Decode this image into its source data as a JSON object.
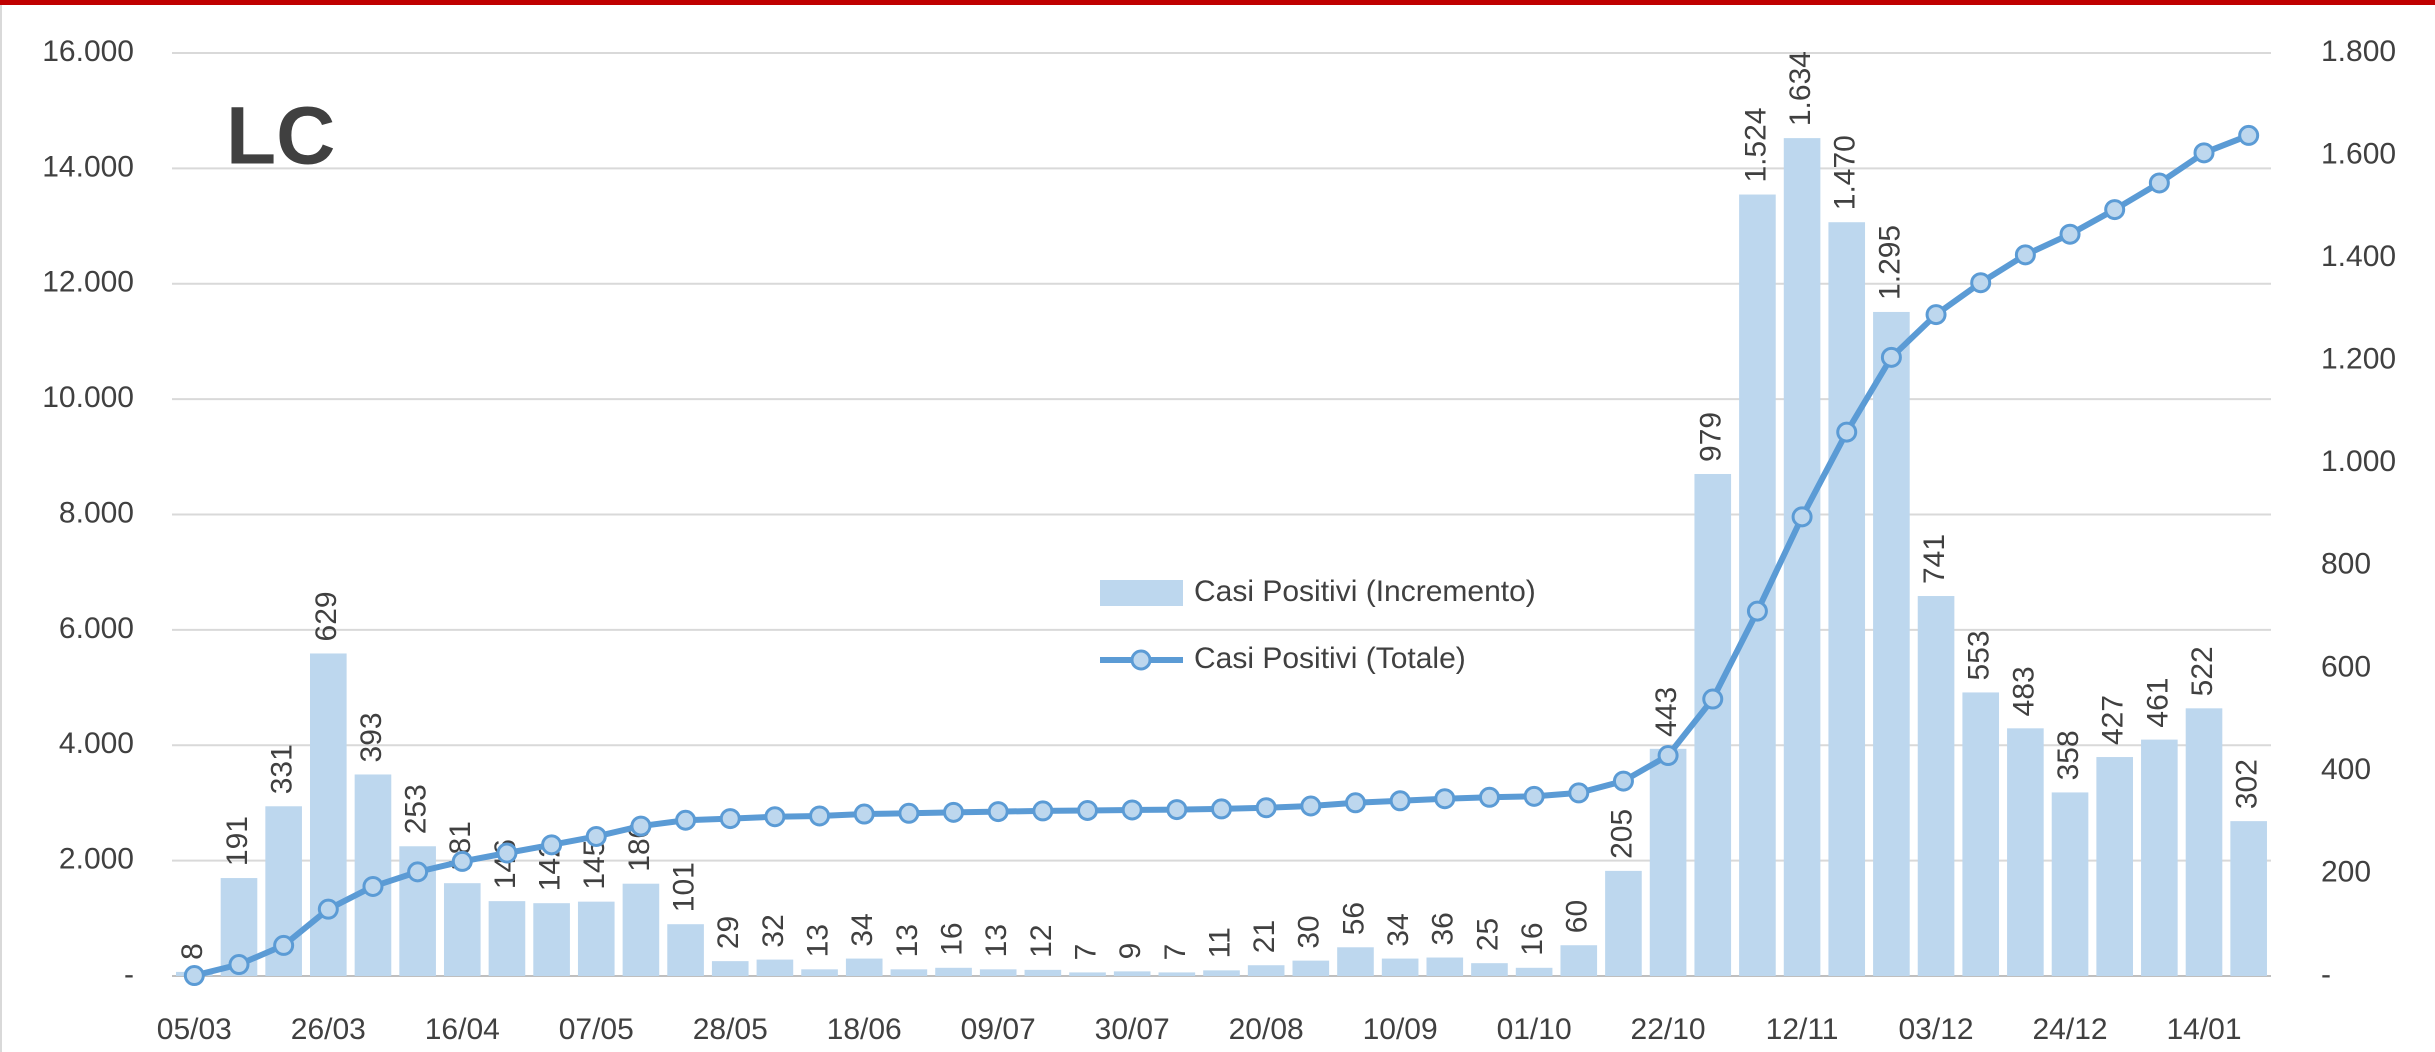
{
  "chart_data": {
    "type": "combo",
    "title": "LC",
    "categories": [
      "05/03",
      null,
      null,
      "26/03",
      null,
      null,
      "16/04",
      null,
      null,
      "07/05",
      null,
      null,
      "28/05",
      null,
      null,
      "18/06",
      null,
      null,
      "09/07",
      null,
      null,
      "30/07",
      null,
      null,
      "20/08",
      null,
      null,
      "10/09",
      null,
      null,
      "01/10",
      null,
      null,
      "22/10",
      null,
      null,
      "12/11",
      null,
      null,
      "03/12",
      null,
      null,
      "24/12",
      null,
      null,
      "14/01",
      null
    ],
    "series": [
      {
        "name": "Casi Positivi (Incremento)",
        "type": "bar",
        "axis": "y2",
        "color": "#bdd7ee",
        "values": [
          8,
          191,
          331,
          629,
          393,
          253,
          181,
          146,
          142,
          145,
          180,
          101,
          29,
          32,
          13,
          34,
          13,
          16,
          13,
          12,
          7,
          9,
          7,
          11,
          21,
          30,
          56,
          34,
          36,
          25,
          16,
          60,
          205,
          443,
          979,
          1524,
          1634,
          1470,
          1295,
          741,
          553,
          483,
          358,
          427,
          461,
          522,
          302
        ],
        "value_labels": [
          "8",
          "191",
          "331",
          "629",
          "393",
          "253",
          "181",
          "146",
          "142",
          "145",
          "180",
          "101",
          "29",
          "32",
          "13",
          "34",
          "13",
          "16",
          "13",
          "12",
          "7",
          "9",
          "7",
          "11",
          "21",
          "30",
          "56",
          "34",
          "36",
          "25",
          "16",
          "60",
          "205",
          "443",
          "979",
          "1.524",
          "1.634",
          "1.470",
          "1.295",
          "741",
          "553",
          "483",
          "358",
          "427",
          "461",
          "522",
          "302"
        ]
      },
      {
        "name": "Casi Positivi (Totale)",
        "type": "line",
        "color": "#5b9bd5",
        "values": [
          8,
          199,
          530,
          1159,
          1552,
          1805,
          1986,
          2132,
          2274,
          2419,
          2599,
          2700,
          2729,
          2761,
          2774,
          2808,
          2821,
          2837,
          2850,
          2862,
          2869,
          2878,
          2885,
          2896,
          2917,
          2947,
          3003,
          3037,
          3073,
          3098,
          3114,
          3174,
          3379,
          3822,
          4801,
          6325,
          7959,
          9429,
          10724,
          11465,
          12018,
          12501,
          12859,
          13286,
          13747,
          14269,
          14571
        ]
      }
    ],
    "ylim": [
      0,
      16000
    ],
    "yticks": [
      {
        "value": 0,
        "label": "-"
      },
      {
        "value": 2000,
        "label": "2.000"
      },
      {
        "value": 4000,
        "label": "4.000"
      },
      {
        "value": 6000,
        "label": "6.000"
      },
      {
        "value": 8000,
        "label": "8.000"
      },
      {
        "value": 10000,
        "label": "10.000"
      },
      {
        "value": 12000,
        "label": "12.000"
      },
      {
        "value": 14000,
        "label": "14.000"
      },
      {
        "value": 16000,
        "label": "16.000"
      }
    ],
    "y2lim": [
      0,
      1800
    ],
    "y2ticks": [
      {
        "value": 0,
        "label": "-"
      },
      200,
      400,
      600,
      800,
      {
        "value": 1000,
        "label": "1.000"
      },
      {
        "value": 1200,
        "label": "1.200"
      },
      {
        "value": 1400,
        "label": "1.400"
      },
      {
        "value": 1600,
        "label": "1.600"
      },
      {
        "value": 1800,
        "label": "1.800"
      }
    ],
    "grid": true
  }
}
